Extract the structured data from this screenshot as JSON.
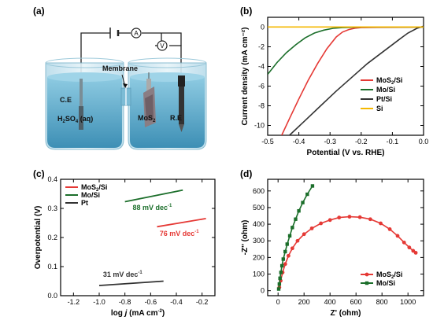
{
  "panels": {
    "a": {
      "tag": "(a)"
    },
    "b": {
      "tag": "(b)"
    },
    "c": {
      "tag": "(c)"
    },
    "d": {
      "tag": "(d)"
    }
  },
  "schematic": {
    "membrane": "Membrane",
    "ce": "C.E",
    "electrolyte": "H",
    "electrolyte_sub": "2",
    "electrolyte_rest": "SO",
    "electrolyte_sub2": "4",
    "electrolyte_tail": " (aq)",
    "mos2": "MoS",
    "mos2_sub": "2",
    "re": "R.E",
    "ammeter": "A",
    "voltmeter": "V",
    "colors": {
      "water": "#5aa6c8",
      "water_top": "#8ecbe2",
      "glass": "#cfe8f2"
    }
  },
  "chart_data": [
    {
      "panel": "b",
      "type": "line",
      "xlabel": "Potential (V vs. RHE)",
      "ylabel": "Current density (mA cm⁻²)",
      "xlim": [
        -0.5,
        0.0
      ],
      "ylim": [
        -11,
        1
      ],
      "xticks": [
        "-0.5",
        "-0.4",
        "-0.3",
        "-0.2",
        "-0.1",
        "0.0"
      ],
      "yticks": [
        "0",
        "-2",
        "-4",
        "-6",
        "-8",
        "-10"
      ],
      "series": [
        {
          "name": "MoS",
          "sub": "2",
          "name_tail": "/Si",
          "color": "#e53935",
          "x": [
            -0.455,
            -0.43,
            -0.4,
            -0.37,
            -0.34,
            -0.31,
            -0.28,
            -0.26,
            -0.24,
            -0.22,
            -0.2,
            -0.15,
            0.0
          ],
          "y": [
            -11,
            -9.3,
            -7.3,
            -5.4,
            -3.7,
            -2.2,
            -1.0,
            -0.5,
            -0.25,
            -0.1,
            -0.05,
            -0.02,
            0
          ]
        },
        {
          "name": "Mo/Si",
          "sub": "",
          "name_tail": "",
          "color": "#1b6e2a",
          "x": [
            -0.5,
            -0.47,
            -0.44,
            -0.41,
            -0.38,
            -0.35,
            -0.32,
            -0.29,
            -0.26,
            -0.23,
            -0.2,
            -0.1,
            0.0
          ],
          "y": [
            -4.8,
            -3.6,
            -2.6,
            -1.8,
            -1.1,
            -0.6,
            -0.3,
            -0.12,
            -0.05,
            -0.02,
            0,
            0,
            0
          ]
        },
        {
          "name": "Pt/Si",
          "sub": "",
          "name_tail": "",
          "color": "#333333",
          "x": [
            -0.43,
            -0.38,
            -0.33,
            -0.28,
            -0.23,
            -0.18,
            -0.13,
            -0.08,
            -0.05,
            -0.02,
            0.0
          ],
          "y": [
            -11,
            -9.5,
            -8.0,
            -6.5,
            -5.1,
            -3.7,
            -2.5,
            -1.3,
            -0.6,
            -0.1,
            0.1
          ]
        },
        {
          "name": "Si",
          "sub": "",
          "name_tail": "",
          "color": "#f5b800",
          "x": [
            -0.5,
            0.0
          ],
          "y": [
            0.02,
            0.02
          ]
        }
      ]
    },
    {
      "panel": "c",
      "type": "line",
      "xlabel": "log j (mA cm⁻²)",
      "xlabel_parts": [
        "log ",
        "j",
        " (mA cm",
        "-2",
        ")"
      ],
      "ylabel": "Overpotential (V)",
      "xlim": [
        -1.3,
        -0.1
      ],
      "ylim": [
        0.0,
        0.4
      ],
      "xticks": [
        "-1.2",
        "-1.0",
        "-0.8",
        "-0.6",
        "-0.4",
        "-0.2"
      ],
      "yticks": [
        "0.0",
        "0.1",
        "0.2",
        "0.3",
        "0.4"
      ],
      "series": [
        {
          "name": "MoS",
          "sub": "2",
          "name_tail": "/Si",
          "color": "#e53935",
          "x": [
            -0.55,
            -0.17
          ],
          "y": [
            0.237,
            0.265
          ]
        },
        {
          "name": "Mo/Si",
          "sub": "",
          "name_tail": "",
          "color": "#1b6e2a",
          "x": [
            -0.8,
            -0.35
          ],
          "y": [
            0.323,
            0.363
          ]
        },
        {
          "name": "Pt",
          "sub": "",
          "name_tail": "",
          "color": "#333333",
          "x": [
            -1.0,
            -0.5
          ],
          "y": [
            0.035,
            0.05
          ]
        }
      ],
      "annotations": [
        {
          "text": "88 mV dec",
          "sup": "-1",
          "color": "#1b6e2a",
          "x": -0.74,
          "y": 0.295
        },
        {
          "text": "76 mV dec",
          "sup": "-1",
          "color": "#e53935",
          "x": -0.53,
          "y": 0.205
        },
        {
          "text": "31 mV dec",
          "sup": "-1",
          "color": "#333333",
          "x": -0.97,
          "y": 0.065
        }
      ]
    },
    {
      "panel": "d",
      "type": "scatter",
      "xlabel": "Z' (ohm)",
      "ylabel": "-Z'' (ohm)",
      "xlim": [
        -80,
        1120
      ],
      "ylim": [
        -30,
        670
      ],
      "xticks": [
        "0",
        "200",
        "400",
        "600",
        "800",
        "1000"
      ],
      "yticks": [
        "0",
        "100",
        "200",
        "300",
        "400",
        "500",
        "600"
      ],
      "series": [
        {
          "name": "MoS",
          "sub": "2",
          "name_tail": "/Si",
          "color": "#e53935",
          "marker": "circle",
          "x": [
            10,
            20,
            35,
            55,
            80,
            110,
            150,
            200,
            260,
            330,
            400,
            470,
            550,
            630,
            710,
            790,
            860,
            920,
            970,
            1010,
            1040,
            1060
          ],
          "y": [
            20,
            60,
            110,
            160,
            210,
            255,
            300,
            340,
            375,
            405,
            425,
            440,
            445,
            442,
            430,
            405,
            370,
            330,
            290,
            260,
            240,
            228
          ]
        },
        {
          "name": "Mo/Si",
          "sub": "",
          "name_tail": "",
          "color": "#1b6e2a",
          "marker": "square",
          "x": [
            5,
            10,
            15,
            22,
            30,
            40,
            55,
            70,
            90,
            110,
            135,
            160,
            190,
            225,
            265
          ],
          "y": [
            10,
            40,
            75,
            110,
            150,
            190,
            235,
            280,
            330,
            380,
            430,
            480,
            530,
            580,
            630
          ]
        }
      ]
    }
  ]
}
